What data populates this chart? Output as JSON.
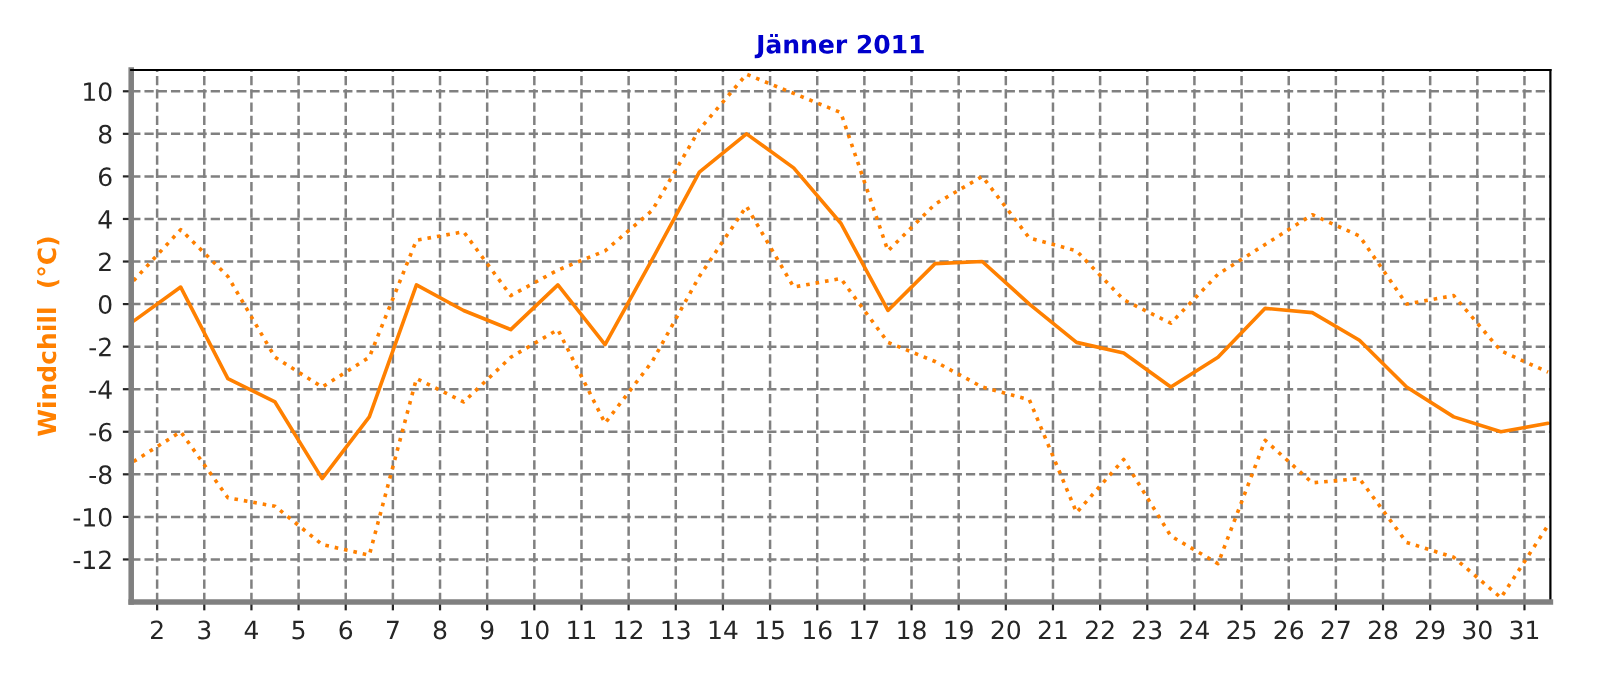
{
  "chart_data": {
    "type": "line",
    "title": "Jänner 2011",
    "ylabel": "Windchill  (°C)",
    "x": [
      1.5,
      2.5,
      3.5,
      4.5,
      5.5,
      6.5,
      7.5,
      8.5,
      9.5,
      10.5,
      11.5,
      12.5,
      13.5,
      14.5,
      15.5,
      16.5,
      17.5,
      18.5,
      19.5,
      20.5,
      21.5,
      22.5,
      23.5,
      24.5,
      25.5,
      26.5,
      27.5,
      28.5,
      29.5,
      30.5,
      31.5
    ],
    "series": [
      {
        "color": "#ff8000",
        "line_style": "dotted",
        "values": [
          1.1,
          3.5,
          1.3,
          -2.5,
          -3.9,
          -2.5,
          3.0,
          3.4,
          0.4,
          1.6,
          2.5,
          4.4,
          8.2,
          10.8,
          9.9,
          9.0,
          2.5,
          4.7,
          6.0,
          3.1,
          2.5,
          0.2,
          -0.9,
          1.4,
          2.8,
          4.2,
          3.2,
          0.0,
          0.4,
          -2.2,
          -3.2
        ]
      },
      {
        "color": "#ff8000",
        "line_style": "solid",
        "values": [
          -0.8,
          0.8,
          -3.5,
          -4.6,
          -8.2,
          -5.3,
          0.9,
          -0.3,
          -1.2,
          0.9,
          -1.9,
          2.1,
          6.2,
          8.0,
          6.4,
          3.8,
          -0.3,
          1.9,
          2.0,
          0.0,
          -1.8,
          -2.3,
          -3.9,
          -2.5,
          -0.2,
          -0.4,
          -1.7,
          -3.9,
          -5.3,
          -6.0,
          -5.6
        ]
      },
      {
        "color": "#ff8000",
        "line_style": "dotted",
        "values": [
          -7.4,
          -6.0,
          -9.1,
          -9.5,
          -11.3,
          -11.8,
          -3.5,
          -4.6,
          -2.5,
          -1.2,
          -5.6,
          -2.7,
          1.3,
          4.6,
          0.8,
          1.2,
          -1.8,
          -2.7,
          -3.9,
          -4.5,
          -9.8,
          -7.3,
          -10.9,
          -12.2,
          -6.4,
          -8.4,
          -8.2,
          -11.2,
          -11.9,
          -13.8,
          -10.4
        ]
      }
    ],
    "xlim": [
      1.45,
      31.55
    ],
    "xticks": [
      2,
      3,
      4,
      5,
      6,
      7,
      8,
      9,
      10,
      11,
      12,
      13,
      14,
      15,
      16,
      17,
      18,
      19,
      20,
      21,
      22,
      23,
      24,
      25,
      26,
      27,
      28,
      29,
      30,
      31
    ],
    "ylim": [
      -14,
      11
    ],
    "yticks": [
      -12,
      -10,
      -8,
      -6,
      -4,
      -2,
      0,
      2,
      4,
      6,
      8,
      10
    ],
    "grid": true,
    "marker": "none"
  }
}
